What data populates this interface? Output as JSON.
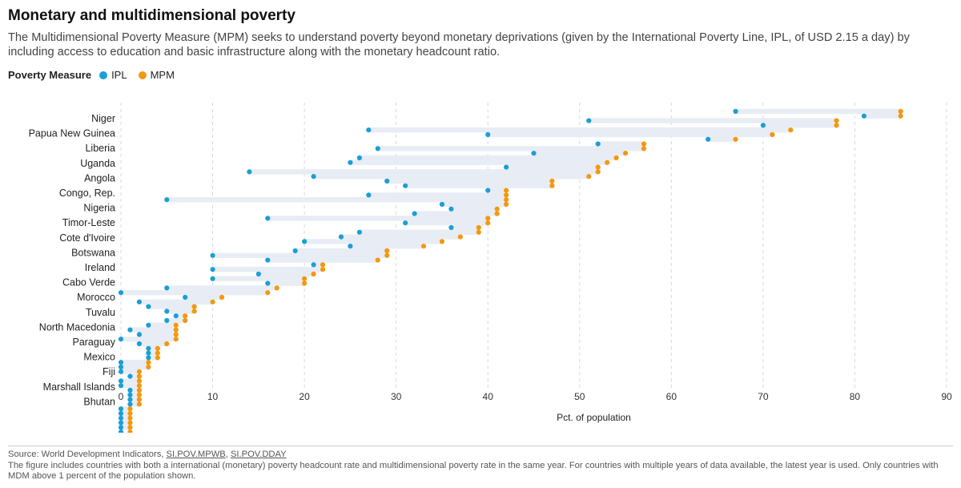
{
  "title": "Monetary and multidimensional poverty",
  "subtitle": "The Multidimensional Poverty Measure (MPM) seeks to understand poverty beyond monetary deprivations (given by the International Poverty Line, IPL, of USD 2.15 a day) by including access to education and basic infrastructure along with the monetary headcount ratio.",
  "legend": {
    "title": "Poverty Measure",
    "ipl_label": "IPL",
    "mpm_label": "MPM"
  },
  "colors": {
    "ipl": "#1a9fd6",
    "mpm": "#f4980e",
    "band": "#e8ecf4",
    "grid": "#d5d8dc"
  },
  "footer": {
    "source_prefix": "Source: World Development Indicators,",
    "source_link1": "SI.POV.MPWB",
    "source_sep": ",",
    "source_link2": "SI.POV.DDAY",
    "note": "The figure includes countries with both a international (monetary) poverty headcount rate and multidimensional poverty rate in the same year. For countries with multiple years of data available, the latest year is used. Only countries with MDM above 1 percent of the population shown."
  },
  "chart_data": {
    "type": "scatter",
    "title": "Monetary and multidimensional poverty",
    "xlabel": "Pct. of population",
    "ylabel": "",
    "xlim": [
      0,
      90
    ],
    "xticks": [
      0,
      10,
      20,
      30,
      40,
      50,
      60,
      70,
      80,
      90
    ],
    "grid": true,
    "legend_position": "top-left",
    "labeled_countries": [
      "Niger",
      "Papua New Guinea",
      "Liberia",
      "Uganda",
      "Angola",
      "Congo, Rep.",
      "Nigeria",
      "Timor-Leste",
      "Cote d'Ivoire",
      "Botswana",
      "Ireland",
      "Cabo Verde",
      "Morocco",
      "Tuvalu",
      "North Macedonia",
      "Paraguay",
      "Mexico",
      "Fiji",
      "Marshall Islands",
      "Bhutan"
    ],
    "rows": [
      {
        "country": "Niger",
        "ipl": 67,
        "mpm": 85
      },
      {
        "country": "",
        "ipl": 81,
        "mpm": 85
      },
      {
        "country": "",
        "ipl": 51,
        "mpm": 78
      },
      {
        "country": "",
        "ipl": 70,
        "mpm": 78
      },
      {
        "country": "Papua New Guinea",
        "ipl": 27,
        "mpm": 73
      },
      {
        "country": "",
        "ipl": 40,
        "mpm": 71
      },
      {
        "country": "",
        "ipl": 64,
        "mpm": 67
      },
      {
        "country": "",
        "ipl": 52,
        "mpm": 57
      },
      {
        "country": "Liberia",
        "ipl": 28,
        "mpm": 57
      },
      {
        "country": "",
        "ipl": 45,
        "mpm": 55
      },
      {
        "country": "",
        "ipl": 26,
        "mpm": 54
      },
      {
        "country": "",
        "ipl": 25,
        "mpm": 53
      },
      {
        "country": "Uganda",
        "ipl": 42,
        "mpm": 52
      },
      {
        "country": "",
        "ipl": 14,
        "mpm": 52
      },
      {
        "country": "",
        "ipl": 21,
        "mpm": 51
      },
      {
        "country": "",
        "ipl": 29,
        "mpm": 47
      },
      {
        "country": "Angola",
        "ipl": 31,
        "mpm": 47
      },
      {
        "country": "",
        "ipl": 40,
        "mpm": 42
      },
      {
        "country": "",
        "ipl": 27,
        "mpm": 42
      },
      {
        "country": "",
        "ipl": 5,
        "mpm": 42
      },
      {
        "country": "Congo, Rep.",
        "ipl": 35,
        "mpm": 42
      },
      {
        "country": "",
        "ipl": 36,
        "mpm": 41
      },
      {
        "country": "",
        "ipl": 32,
        "mpm": 41
      },
      {
        "country": "",
        "ipl": 16,
        "mpm": 40
      },
      {
        "country": "Nigeria",
        "ipl": 31,
        "mpm": 40
      },
      {
        "country": "",
        "ipl": 36,
        "mpm": 39
      },
      {
        "country": "",
        "ipl": 26,
        "mpm": 39
      },
      {
        "country": "",
        "ipl": 24,
        "mpm": 37
      },
      {
        "country": "Timor-Leste",
        "ipl": 20,
        "mpm": 35
      },
      {
        "country": "",
        "ipl": 25,
        "mpm": 33
      },
      {
        "country": "",
        "ipl": 19,
        "mpm": 29
      },
      {
        "country": "",
        "ipl": 10,
        "mpm": 29
      },
      {
        "country": "Cote d'Ivoire",
        "ipl": 16,
        "mpm": 28
      },
      {
        "country": "",
        "ipl": 21,
        "mpm": 22
      },
      {
        "country": "",
        "ipl": 10,
        "mpm": 22
      },
      {
        "country": "",
        "ipl": 15,
        "mpm": 21
      },
      {
        "country": "Botswana",
        "ipl": 10,
        "mpm": 20
      },
      {
        "country": "",
        "ipl": 16,
        "mpm": 20
      },
      {
        "country": "",
        "ipl": 5,
        "mpm": 17
      },
      {
        "country": "",
        "ipl": 0,
        "mpm": 16
      },
      {
        "country": "Ireland",
        "ipl": 7,
        "mpm": 11
      },
      {
        "country": "",
        "ipl": 2,
        "mpm": 10
      },
      {
        "country": "",
        "ipl": 3,
        "mpm": 8
      },
      {
        "country": "",
        "ipl": 5,
        "mpm": 8
      },
      {
        "country": "Cabo Verde",
        "ipl": 6,
        "mpm": 7
      },
      {
        "country": "",
        "ipl": 5,
        "mpm": 7
      },
      {
        "country": "",
        "ipl": 3,
        "mpm": 6
      },
      {
        "country": "",
        "ipl": 1,
        "mpm": 6
      },
      {
        "country": "Morocco",
        "ipl": 2,
        "mpm": 6
      },
      {
        "country": "",
        "ipl": 0,
        "mpm": 6
      },
      {
        "country": "",
        "ipl": 2,
        "mpm": 5
      },
      {
        "country": "",
        "ipl": 3,
        "mpm": 4
      },
      {
        "country": "Tuvalu",
        "ipl": 3,
        "mpm": 4
      },
      {
        "country": "",
        "ipl": 3,
        "mpm": 4
      },
      {
        "country": "",
        "ipl": 0,
        "mpm": 3
      },
      {
        "country": "",
        "ipl": 0,
        "mpm": 3
      },
      {
        "country": "North Macedonia",
        "ipl": 0,
        "mpm": 2
      },
      {
        "country": "",
        "ipl": 1,
        "mpm": 2
      },
      {
        "country": "",
        "ipl": 0,
        "mpm": 2
      },
      {
        "country": "",
        "ipl": 0,
        "mpm": 2
      },
      {
        "country": "Paraguay",
        "ipl": 1,
        "mpm": 2
      },
      {
        "country": "",
        "ipl": 1,
        "mpm": 2
      },
      {
        "country": "",
        "ipl": 1,
        "mpm": 2
      },
      {
        "country": "",
        "ipl": 1,
        "mpm": 2
      },
      {
        "country": "Mexico",
        "ipl": 0,
        "mpm": 1
      },
      {
        "country": "",
        "ipl": 0,
        "mpm": 1
      },
      {
        "country": "",
        "ipl": 0,
        "mpm": 1
      },
      {
        "country": "",
        "ipl": 0,
        "mpm": 1
      },
      {
        "country": "Fiji",
        "ipl": 0,
        "mpm": 1
      }
    ]
  }
}
